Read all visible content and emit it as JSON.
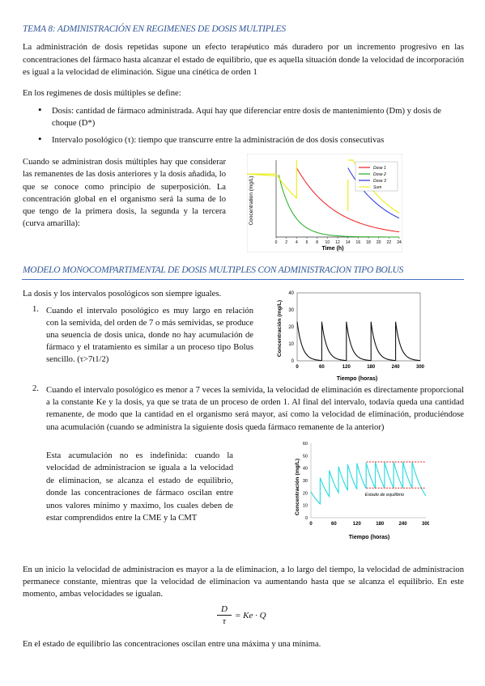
{
  "heading1": "TEMA 8: ADMINISTRACIÓN EN REGIMENES DE DOSIS MULTIPLES",
  "intro": "La administración de dosis repetidas supone un efecto terapéutico más duradero por un incremento progresivo en las concentraciones del fármaco hasta alcanzar el estado de equilibrio, que es aquella situación donde la velocidad de incorporación es igual a la velocidad de eliminación. Sigue una cinética de orden 1",
  "defines": "En los regimenes de dosis múltiples se define:",
  "bullets": [
    "Dosis: cantidad de fármaco administrada. Aquí hay que diferenciar entre dosis de mantenimiento (Dm) y dosis de choque (D*)",
    "Intervalo posológico (τ): tiempo que transcurre entre la administración de dos dosis consecutivas"
  ],
  "superposition": "Cuando se administran dosis múltiples hay que considerar las remanentes de las dosis anteriores y la dosis añadida, lo que se conoce como principio de superposición. La concentración global en el organismo será la suma de lo que tengo de la primera dosis, la segunda y la tercera (curva amarilla):",
  "heading2": "MODELO MONOCOMPARTIMENTAL DE DOSIS MULTIPLES CON ADMINISTRACION TIPO BOLUS",
  "same": "La dosis y los intervalos posológicos son siempre iguales.",
  "items": [
    {
      "n": "1.",
      "text": "Cuando el intervalo posológico es muy largo en relación con la semivida, del orden de 7 o más semividas, se produce una seuencia de dosis unica, donde no hay acumulación de fármaco y el tratamiento es similar a un proceso tipo Bolus sencillo. (τ>7t1/2)"
    },
    {
      "n": "2.",
      "text": "Cuando el intervalo posológico es menor a 7 veces la semivida, la velocidad de eliminación es directamente proporcional a la constante Ke y la dosis, ya que se trata de un proceso de orden 1. Al final del intervalo, todavía queda una cantidad remanente, de modo que la cantidad en el organismo será mayor, así como la velocidad de eliminación, produciéndose una acumulación (cuando se administra la siguiente dosis queda fármaco remanente de la anterior)"
    }
  ],
  "indef": "Esta acumulación no es indefinida: cuando la velocidad de administracion se iguala a la velocidad de eliminacion, se alcanza el estado de equilibrio, donde las concentraciones de fármaco oscilan entre unos valores mínimo y maximo, los cuales deben de estar comprendidos entre la CME y la CMT",
  "para1": "En un inicio la velocidad de administracion es mayor a la de eliminacion, a lo largo del tiempo, la velocidad de administracion permanece constante, mientras que la velocidad de eliminacion va aumentando hasta que se alcanza el equilibrio. En este momento, ambas velocidades se igualan.",
  "formula": {
    "num": "D",
    "den": "τ",
    "rhs": "= Ke · Q"
  },
  "para2": "En el estado de equilibrio las concentraciones oscilan entre una máxima y una mínima.",
  "colors": {
    "heading": "#2f5496",
    "rule": "#4472c4",
    "dose1": "#ee1c1c",
    "dose2": "#22aa22",
    "dose3": "#2233dd",
    "sum": "#eeee22",
    "bolus": "#111111",
    "accum": "#33dde0",
    "ss_line": "#e02020"
  },
  "chart_data": [
    {
      "type": "line",
      "xlabel": "Time (h)",
      "ylabel": "Concentration (mg/L)",
      "x_ticks": [
        0,
        2,
        4,
        6,
        8,
        10,
        12,
        14,
        16,
        18,
        20,
        22,
        24
      ],
      "xlim": [
        0,
        24
      ],
      "ylim": [
        0,
        10
      ],
      "dose_times": [
        4,
        14
      ],
      "series": [
        {
          "name": "Dose 1",
          "color": "red"
        },
        {
          "name": "Dose 2",
          "color": "green"
        },
        {
          "name": "Dose 3",
          "color": "blue"
        },
        {
          "name": "Sum",
          "color": "yellow"
        }
      ],
      "legend": "top-right"
    },
    {
      "type": "line",
      "xlabel": "Tiempo (horas)",
      "ylabel": "Concentración (mg/L)",
      "x_ticks": [
        0,
        60,
        120,
        180,
        240,
        300
      ],
      "y_ticks": [
        0,
        10,
        20,
        30,
        40
      ],
      "xlim": [
        0,
        300
      ],
      "ylim": [
        0,
        40
      ],
      "dose_times": [
        0,
        60,
        120,
        180,
        240
      ],
      "peak": 23,
      "trough": 0
    },
    {
      "type": "line",
      "xlabel": "Tiempo (horas)",
      "ylabel": "Concentración (mg/L)",
      "x_ticks": [
        0,
        60,
        120,
        180,
        240,
        300
      ],
      "y_ticks": [
        0,
        10,
        20,
        30,
        40,
        50,
        60
      ],
      "xlim": [
        0,
        300
      ],
      "ylim": [
        0,
        60
      ],
      "dose_times": [
        0,
        24,
        48,
        72,
        96,
        120,
        144,
        168,
        192,
        216,
        240,
        264
      ],
      "steady_state_max": 45,
      "steady_state_min": 24,
      "annotation": "Estado de equilibrio"
    }
  ]
}
